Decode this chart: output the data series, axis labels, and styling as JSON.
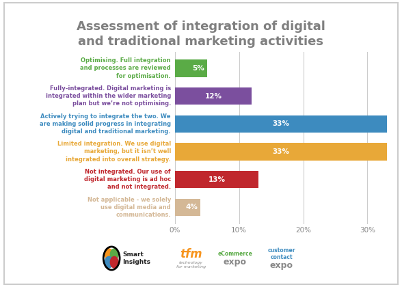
{
  "title": "Assessment of integration of digital\nand traditional marketing activities",
  "title_color": "#7f7f7f",
  "categories": [
    "Optimising. Full integration\nand processes are reviewed\nfor optimisation.",
    "Fully-integrated. Digital marketing is\nintegrated within the wider marketing\nplan but we’re not optimising.",
    "Actively trying to integrate the two. We\nare making solid progress in integrating\ndigital and traditional marketing.",
    "Limited integration. We use digital\nmarketing, but it isn’t well\nintegrated into overall strategy.",
    "Not integrated. Our use of\ndigital marketing is ad hoc\nand not integrated.",
    "Not applicable - we solely\nuse digital media and\ncommunications."
  ],
  "values": [
    5,
    12,
    33,
    33,
    13,
    4
  ],
  "bar_colors": [
    "#5aab46",
    "#7b4f9e",
    "#3d8bbf",
    "#e8a838",
    "#c0272d",
    "#d4b896"
  ],
  "label_colors": [
    "#5aab46",
    "#7b4f9e",
    "#3d8bbf",
    "#e8a838",
    "#c0272d",
    "#d4b896"
  ],
  "bar_labels": [
    "5%",
    "12%",
    "33%",
    "33%",
    "13%",
    "4%"
  ],
  "xticks": [
    0,
    10,
    20,
    30
  ],
  "xticklabels": [
    "0%",
    "10%",
    "20%",
    "30%"
  ],
  "background_color": "#ffffff",
  "border_color": "#cccccc",
  "title_fontsize": 13,
  "label_fontsize": 6.0,
  "bar_label_fontsize": 7.5,
  "xtick_fontsize": 7.5
}
